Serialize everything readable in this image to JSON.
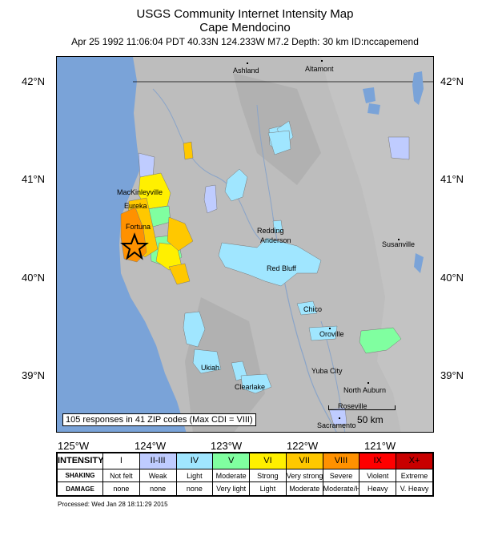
{
  "header": {
    "title": "USGS Community Internet Intensity Map",
    "location": "Cape Mendocino",
    "event_info": "Apr 25 1992 11:06:04 PDT 40.33N 124.233W M7.2 Depth: 30 km ID:nccapemend"
  },
  "map": {
    "lat_labels": [
      "42°N",
      "41°N",
      "40°N",
      "39°N"
    ],
    "lon_labels": [
      "125°W",
      "124°W",
      "123°W",
      "122°W",
      "121°W"
    ],
    "cities": [
      {
        "name": "Ashland"
      },
      {
        "name": "Altamont"
      },
      {
        "name": "MacKinleyville"
      },
      {
        "name": "Eureka"
      },
      {
        "name": "Fortuna"
      },
      {
        "name": "Redding"
      },
      {
        "name": "Anderson"
      },
      {
        "name": "Susanville"
      },
      {
        "name": "Red Bluff"
      },
      {
        "name": "Chico"
      },
      {
        "name": "Oroville"
      },
      {
        "name": "Ukiah"
      },
      {
        "name": "Yuba City"
      },
      {
        "name": "Clearlake"
      },
      {
        "name": "North Auburn"
      },
      {
        "name": "Roseville"
      },
      {
        "name": "Sacramento"
      }
    ],
    "responses_note": "105 responses in 41 ZIP codes (Max CDI = VIII)",
    "scale_label": "50 km",
    "colors": {
      "ocean": "#7aa3d8",
      "terrain": "#b9b9b9",
      "epicenter": "#000000"
    }
  },
  "legend": {
    "row_headers": [
      "INTENSITY",
      "SHAKING",
      "DAMAGE"
    ],
    "levels": [
      {
        "intensity": "I",
        "shaking": "Not felt",
        "damage": "none",
        "color": "#ffffff"
      },
      {
        "intensity": "II-III",
        "shaking": "Weak",
        "damage": "none",
        "color": "#bfccff"
      },
      {
        "intensity": "IV",
        "shaking": "Light",
        "damage": "none",
        "color": "#a0e6ff"
      },
      {
        "intensity": "V",
        "shaking": "Moderate",
        "damage": "Very light",
        "color": "#80ffa0"
      },
      {
        "intensity": "VI",
        "shaking": "Strong",
        "damage": "Light",
        "color": "#fff000"
      },
      {
        "intensity": "VII",
        "shaking": "Very strong",
        "damage": "Moderate",
        "color": "#ffc800"
      },
      {
        "intensity": "VIII",
        "shaking": "Severe",
        "damage": "Moderate/Heavy",
        "color": "#ff9100"
      },
      {
        "intensity": "IX",
        "shaking": "Violent",
        "damage": "Heavy",
        "color": "#ff0000"
      },
      {
        "intensity": "X+",
        "shaking": "Extreme",
        "damage": "V. Heavy",
        "color": "#c80000"
      }
    ]
  },
  "footer": {
    "processed": "Processed: Wed Jan 28 18:11:29 2015"
  }
}
